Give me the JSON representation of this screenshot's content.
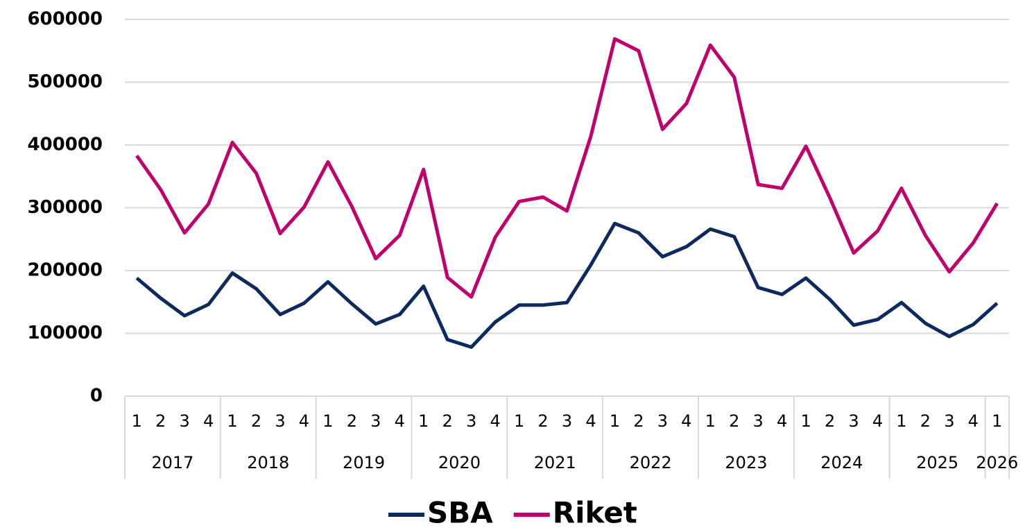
{
  "chart_data": {
    "type": "line",
    "categories": [
      "1",
      "2",
      "3",
      "4",
      "1",
      "2",
      "3",
      "4",
      "1",
      "2",
      "3",
      "4",
      "1",
      "2",
      "3",
      "4",
      "1",
      "2",
      "3",
      "4",
      "1",
      "2",
      "3",
      "4",
      "1",
      "2",
      "3",
      "4",
      "1",
      "2",
      "3",
      "4",
      "1",
      "2",
      "3",
      "4",
      "1"
    ],
    "category_groups": [
      "2017",
      "2018",
      "2019",
      "2020",
      "2021",
      "2022",
      "2023",
      "2024",
      "2025",
      "2026"
    ],
    "series": [
      {
        "name": "SBA",
        "color": "#0d2a5e",
        "values": [
          188000,
          156000,
          128000,
          146000,
          196000,
          171000,
          130000,
          148000,
          182000,
          147000,
          115000,
          130000,
          175000,
          90000,
          78000,
          118000,
          145000,
          145000,
          149000,
          209000,
          275000,
          260000,
          222000,
          238000,
          266000,
          254000,
          173000,
          162000,
          188000,
          154000,
          113000,
          122000,
          149000,
          116000,
          95000,
          114000,
          148000
        ]
      },
      {
        "name": "Riket",
        "color": "#c2006b",
        "values": [
          383000,
          329000,
          260000,
          306000,
          404000,
          355000,
          259000,
          301000,
          373000,
          302000,
          219000,
          256000,
          361000,
          189000,
          158000,
          253000,
          310000,
          317000,
          295000,
          414000,
          569000,
          550000,
          425000,
          466000,
          559000,
          508000,
          337000,
          331000,
          398000,
          316000,
          228000,
          263000,
          331000,
          256000,
          198000,
          244000,
          307000
        ]
      }
    ],
    "ylim": [
      0,
      600000
    ],
    "yticks": [
      0,
      100000,
      200000,
      300000,
      400000,
      500000,
      600000
    ],
    "grid": true,
    "legend": "bottom"
  }
}
